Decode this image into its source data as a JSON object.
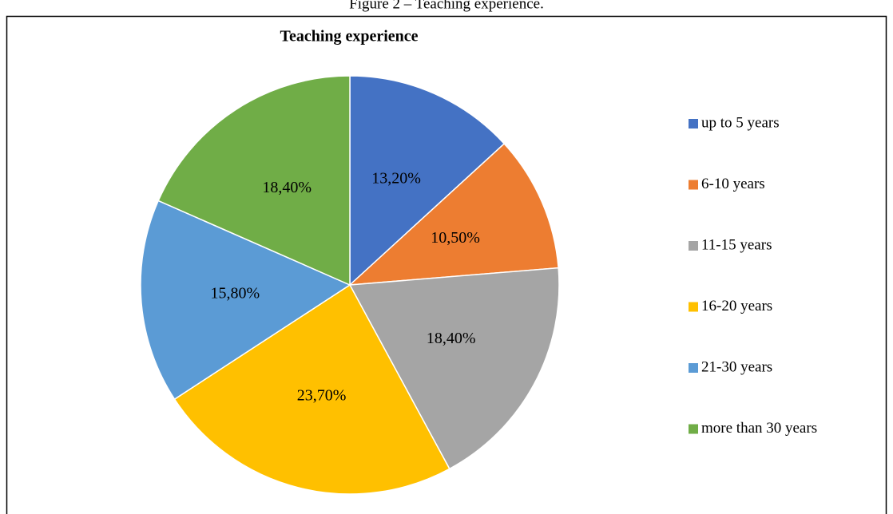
{
  "caption": "Figure 2 – Teaching experience.",
  "chart_data": {
    "type": "pie",
    "title": "Teaching experience",
    "categories": [
      "up to 5 years",
      "6-10 years",
      "11-15 years",
      "16-20 years",
      "21-30 years",
      "more than 30 years"
    ],
    "values": [
      13.2,
      10.5,
      18.4,
      23.7,
      15.8,
      18.4
    ],
    "value_labels": [
      "13,20%",
      "10,50%",
      "18,40%",
      "23,70%",
      "15,80%",
      "18,40%"
    ],
    "colors": [
      "#4472c4",
      "#ed7d31",
      "#a5a5a5",
      "#ffc000",
      "#5b9bd5",
      "#70ad47"
    ],
    "legend": "right"
  }
}
